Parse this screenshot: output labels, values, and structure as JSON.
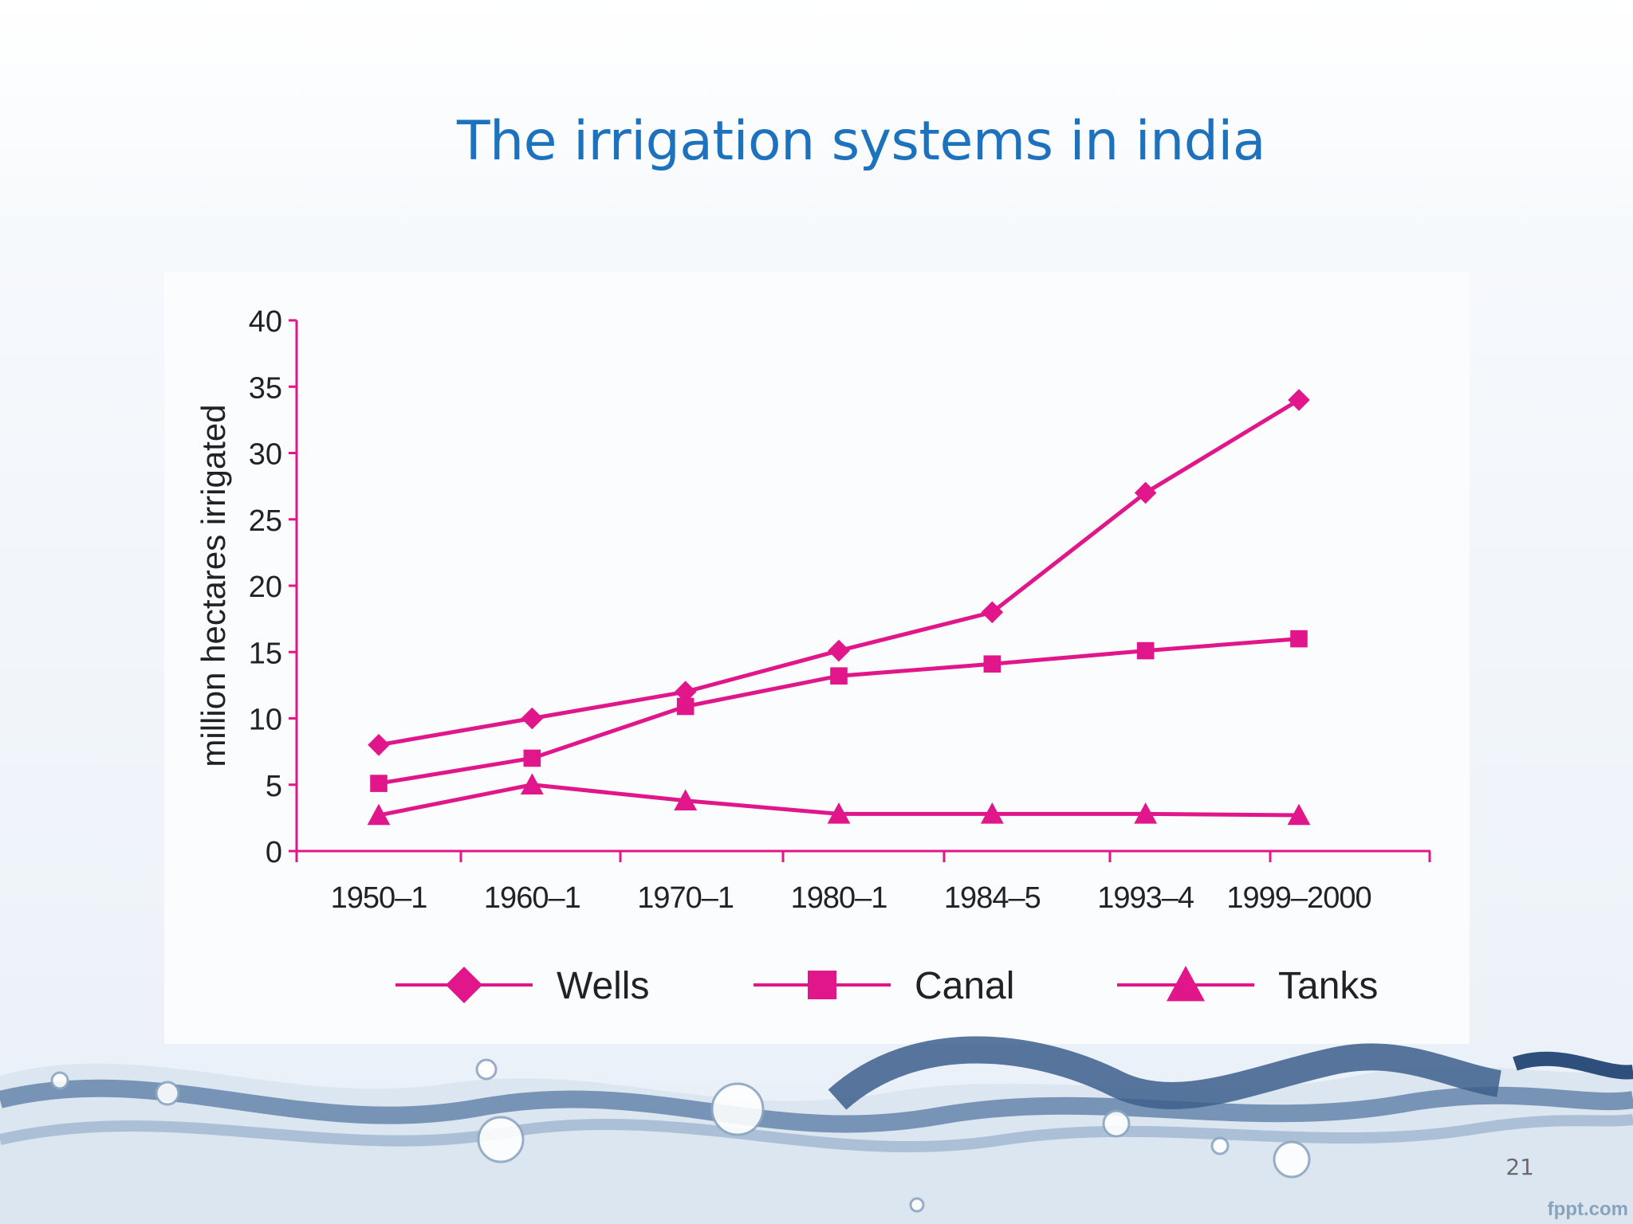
{
  "slide": {
    "title": "The irrigation systems in india",
    "page_number": "21",
    "watermark": "fppt.com"
  },
  "colors": {
    "series": "#e0168a",
    "title": "#1d72bd",
    "text": "#222222"
  },
  "chart_data": {
    "type": "line",
    "title": "",
    "xlabel": "",
    "ylabel": "million hectares irrigated",
    "categories": [
      "1950–1",
      "1960–1",
      "1970–1",
      "1980–1",
      "1984–5",
      "1993–4",
      "1999–2000"
    ],
    "ylim": [
      0,
      40
    ],
    "yticks": [
      0,
      5,
      10,
      15,
      20,
      25,
      30,
      35,
      40
    ],
    "grid": false,
    "legend": "bottom",
    "series": [
      {
        "name": "Wells",
        "marker": "diamond",
        "values": [
          8,
          10,
          12,
          15.1,
          18,
          27,
          34
        ]
      },
      {
        "name": "Canal",
        "marker": "square",
        "values": [
          5.1,
          7,
          10.9,
          13.2,
          14.1,
          15.1,
          16
        ]
      },
      {
        "name": "Tanks",
        "marker": "triangle",
        "values": [
          2.7,
          5,
          3.8,
          2.8,
          2.8,
          2.8,
          2.7
        ]
      }
    ]
  }
}
